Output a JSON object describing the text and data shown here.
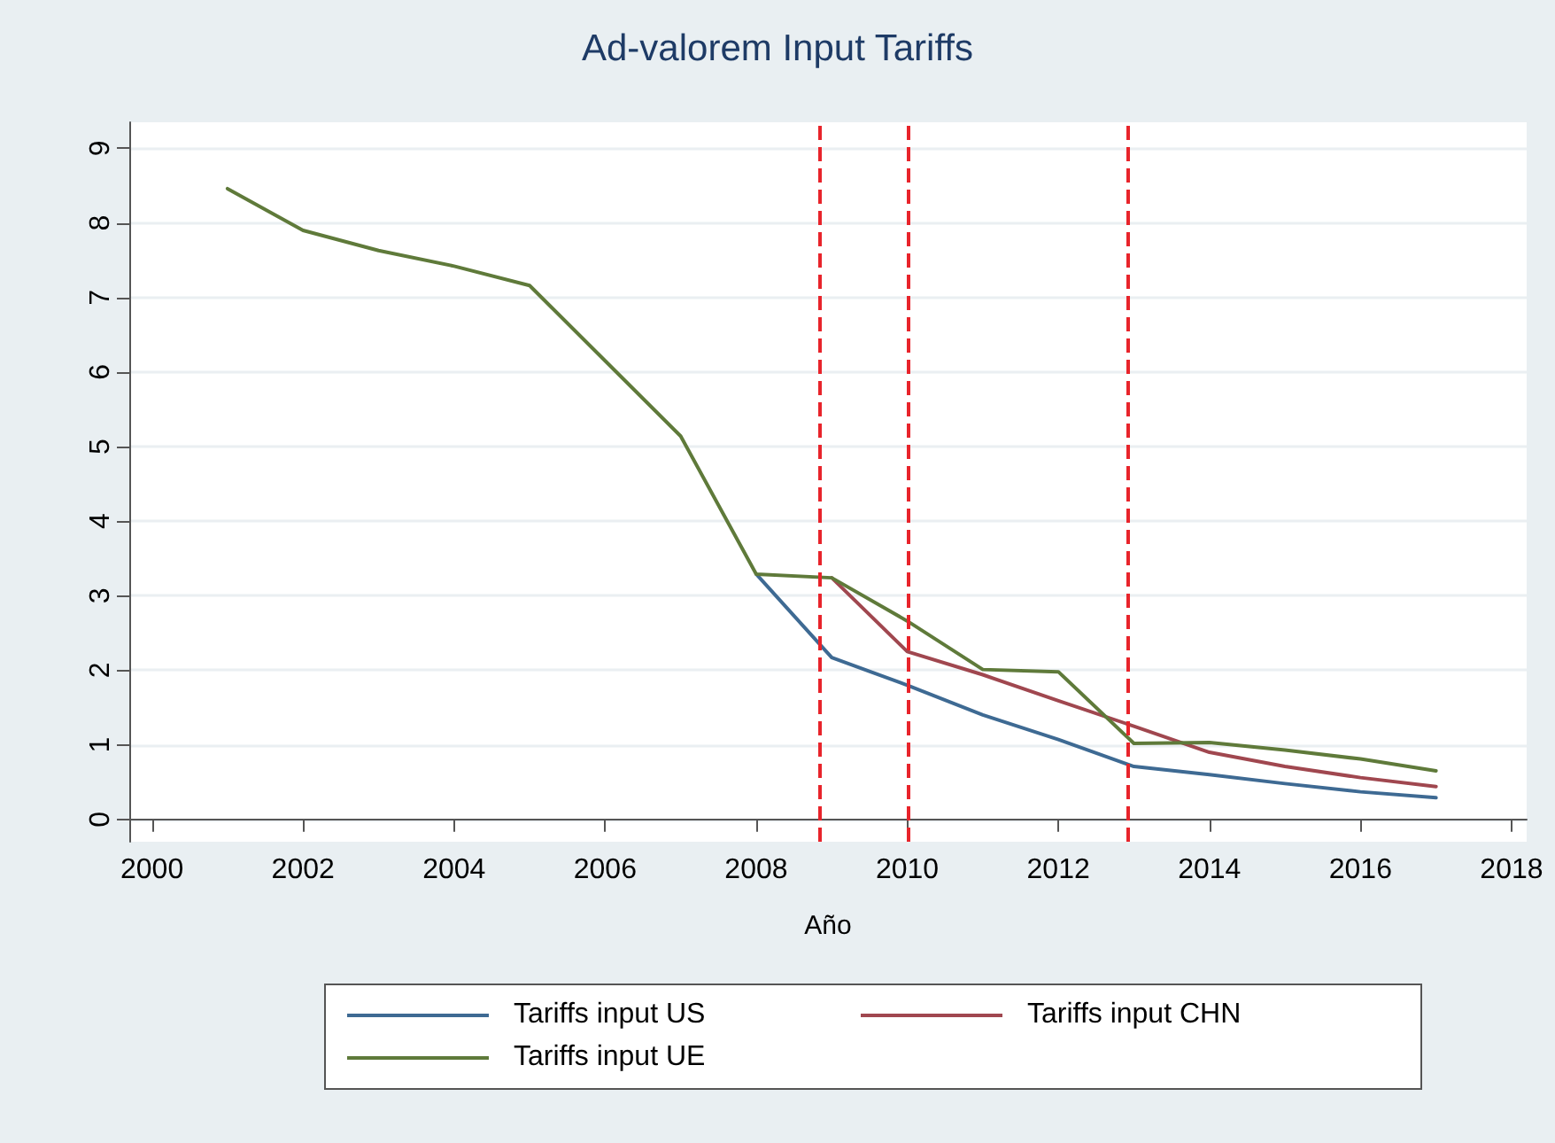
{
  "chart_data": {
    "type": "line",
    "title": "Ad-valorem Input Tariffs",
    "xlabel": "Año",
    "x": [
      2001,
      2002,
      2003,
      2004,
      2005,
      2006,
      2007,
      2008,
      2009,
      2010,
      2011,
      2012,
      2013,
      2014,
      2015,
      2016,
      2017
    ],
    "series": [
      {
        "name": "Tariffs input US",
        "color": "#3e6a93",
        "values": [
          null,
          null,
          null,
          null,
          null,
          null,
          null,
          3.29,
          2.17,
          1.8,
          1.4,
          1.07,
          0.71,
          0.6,
          0.48,
          0.37,
          0.29
        ]
      },
      {
        "name": "Tariffs input CHN",
        "color": "#a0474f",
        "values": [
          null,
          null,
          null,
          null,
          null,
          null,
          null,
          null,
          3.24,
          2.25,
          1.94,
          1.59,
          1.25,
          0.9,
          0.71,
          0.56,
          0.44
        ]
      },
      {
        "name": "Tariffs input UE",
        "color": "#5f7a3a",
        "values": [
          8.46,
          7.9,
          7.63,
          7.42,
          7.16,
          6.15,
          5.14,
          3.29,
          3.24,
          2.66,
          2.01,
          1.98,
          1.02,
          1.03,
          0.93,
          0.81,
          0.65
        ]
      }
    ],
    "xlim": [
      1999.7,
      2018.2
    ],
    "xticks": [
      2000,
      2002,
      2004,
      2006,
      2008,
      2010,
      2012,
      2014,
      2016,
      2018
    ],
    "ylim": [
      -0.3,
      9.35
    ],
    "yticks": [
      0,
      1,
      2,
      3,
      4,
      5,
      6,
      7,
      8,
      9
    ],
    "ref_lines": [
      {
        "axis": "x",
        "value": 2008.85,
        "color": "#e8242b",
        "line_style": "dashed"
      },
      {
        "axis": "x",
        "value": 2010,
        "color": "#e8242b",
        "line_style": "dashed"
      },
      {
        "axis": "x",
        "value": 2012.92,
        "color": "#e8242b",
        "line_style": "dashed"
      }
    ],
    "grid": "y",
    "legend": "bottom",
    "marker": "none",
    "line_style": "solid"
  }
}
